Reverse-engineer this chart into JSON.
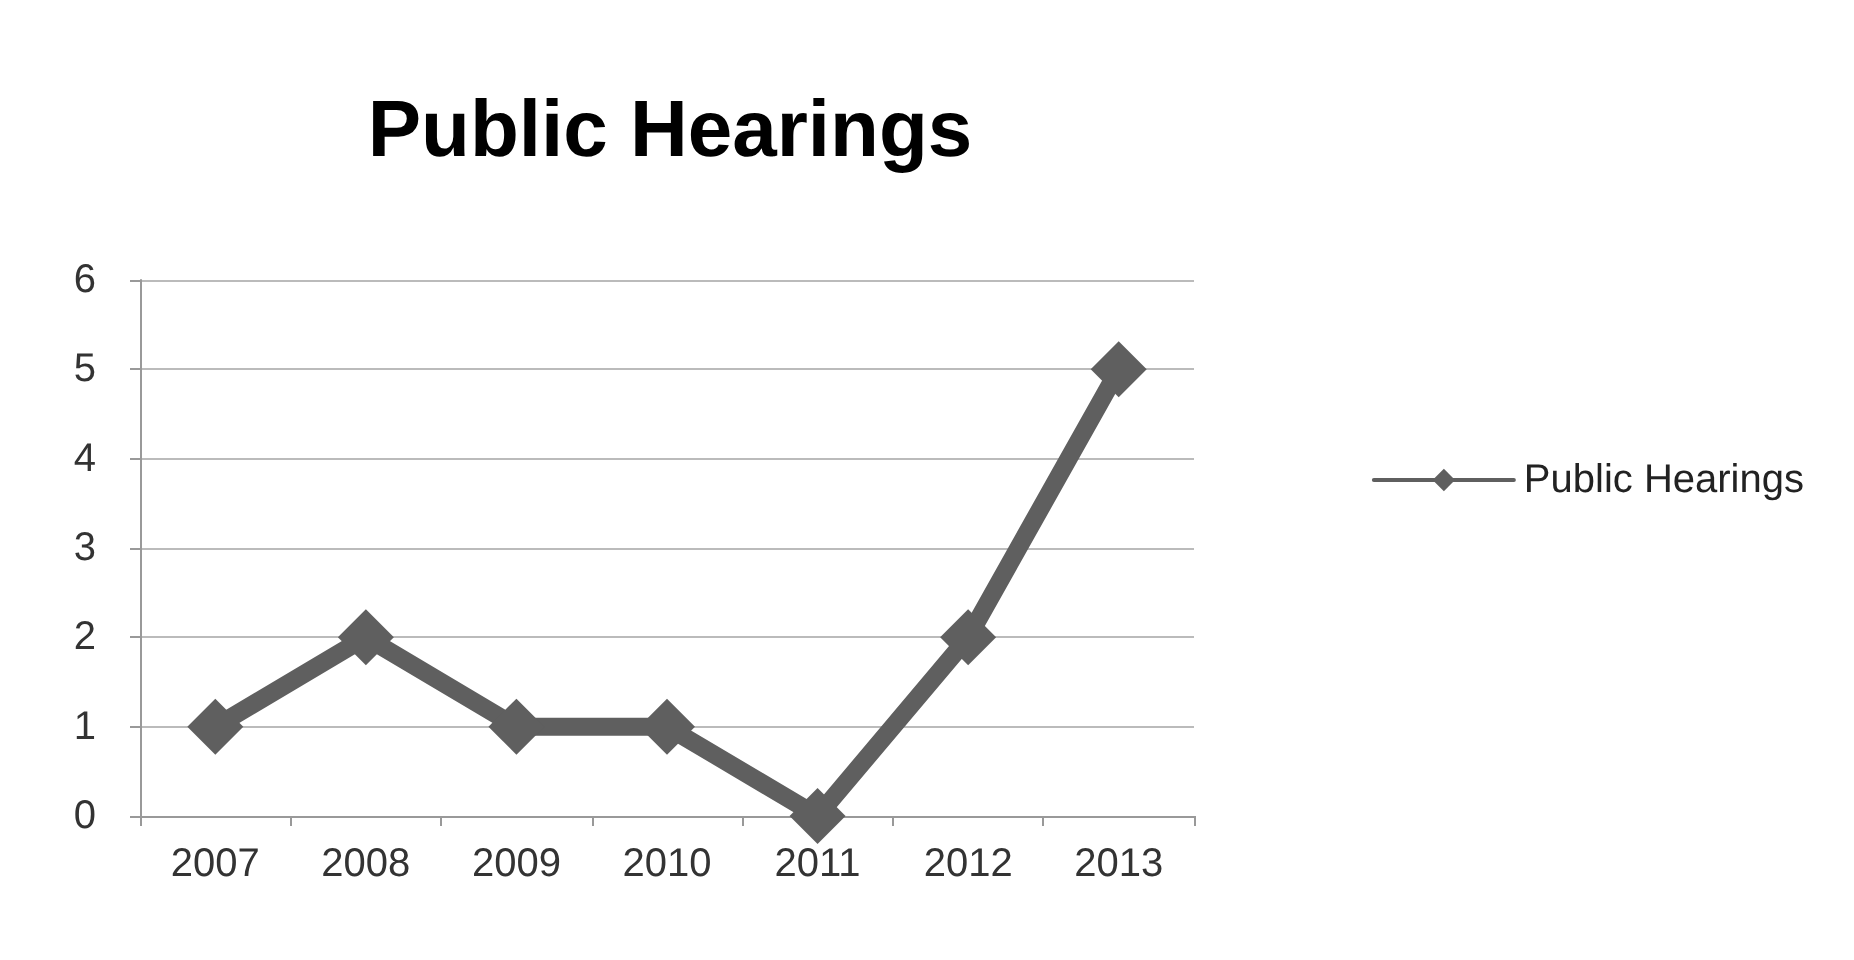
{
  "chart_data": {
    "type": "line",
    "title": "Public Hearings",
    "categories": [
      "2007",
      "2008",
      "2009",
      "2010",
      "2011",
      "2012",
      "2013"
    ],
    "series": [
      {
        "name": "Public Hearings",
        "color": "#5f5f5f",
        "values": [
          1,
          2,
          1,
          1,
          0,
          2,
          5
        ]
      }
    ],
    "ylim": [
      0,
      6
    ],
    "yticks": [
      0,
      1,
      2,
      3,
      4,
      5,
      6
    ],
    "grid": "y",
    "legend": "right",
    "marker": "diamond",
    "line_style": "solid"
  }
}
